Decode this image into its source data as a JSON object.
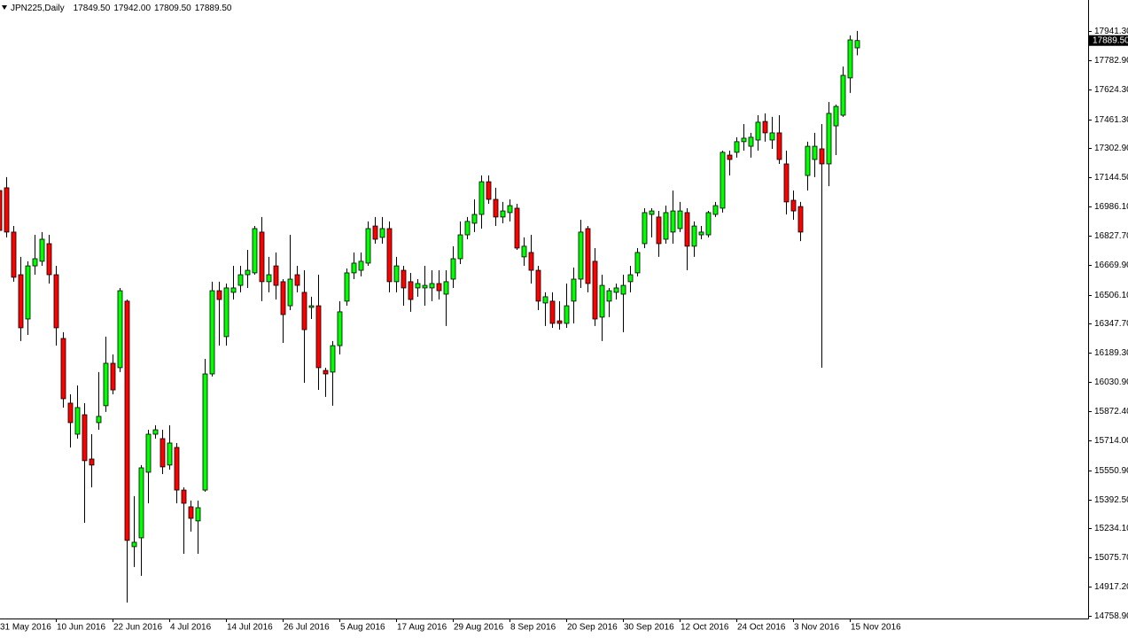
{
  "chart_data": {
    "type": "candlestick",
    "title": "JPN225,Daily",
    "header_values": [
      "17849.50",
      "17942.00",
      "17809.50",
      "17889.50"
    ],
    "categories": [
      "31 May 2016",
      null,
      null,
      null,
      null,
      null,
      null,
      null,
      "10 Jun 2016",
      null,
      null,
      null,
      null,
      null,
      null,
      null,
      "22 Jun 2016",
      null,
      null,
      null,
      null,
      null,
      null,
      null,
      "4 Jul 2016",
      null,
      null,
      null,
      null,
      null,
      null,
      null,
      "14 Jul 2016",
      null,
      null,
      null,
      null,
      null,
      null,
      null,
      "26 Jul 2016",
      null,
      null,
      null,
      null,
      null,
      null,
      null,
      "5 Aug 2016",
      null,
      null,
      null,
      null,
      null,
      null,
      null,
      "17 Aug 2016",
      null,
      null,
      null,
      null,
      null,
      null,
      null,
      "29 Aug 2016",
      null,
      null,
      null,
      null,
      null,
      null,
      null,
      "8 Sep 2016",
      null,
      null,
      null,
      null,
      null,
      null,
      null,
      "20 Sep 2016",
      null,
      null,
      null,
      null,
      null,
      null,
      null,
      "30 Sep 2016",
      null,
      null,
      null,
      null,
      null,
      null,
      null,
      "12 Oct 2016",
      null,
      null,
      null,
      null,
      null,
      null,
      null,
      "24 Oct 2016",
      null,
      null,
      null,
      null,
      null,
      null,
      null,
      "3 Nov 2016",
      null,
      null,
      null,
      null,
      null,
      null,
      null,
      "15 Nov 2016",
      null
    ],
    "open": [
      17073,
      17088,
      16847,
      16615,
      16374,
      16663,
      16688,
      16784,
      16615,
      16268,
      15916,
      15747,
      15853,
      15612,
      15810,
      15902,
      16133,
      16109,
      16471,
      15135,
      15183,
      15540,
      15747,
      15723,
      15579,
      15675,
      15443,
      15352,
      15275,
      15443,
      16075,
      16528,
      16278,
      16519,
      16557,
      16615,
      16625,
      16847,
      16577,
      16663,
      16577,
      16446,
      16615,
      16519,
      16437,
      16446,
      16094,
      16085,
      16229,
      16471,
      16625,
      16639,
      16678,
      16880,
      16818,
      16866,
      16577,
      16639,
      16577,
      16543,
      16543,
      16543,
      16567,
      16509,
      16591,
      16702,
      16832,
      16895,
      16943,
      17121,
      17025,
      16929,
      16953,
      16977,
      16712,
      16736,
      16639,
      16461,
      16471,
      16364,
      16350,
      16471,
      16591,
      16866,
      16688,
      16384,
      16471,
      16519,
      16509,
      16577,
      16625,
      16784,
      16943,
      16929,
      16808,
      16847,
      16866,
      16953,
      16770,
      16832,
      16832,
      16943,
      16977,
      17266,
      17281,
      17339,
      17314,
      17348,
      17449,
      17348,
      17387,
      17218,
      17020,
      16986,
      17155,
      17242,
      17300,
      17218,
      17425,
      17483,
      17686,
      17849.5
    ],
    "high": [
      17122,
      17146,
      16880,
      16712,
      16688,
      16832,
      16847,
      16832,
      16663,
      16302,
      15964,
      16012,
      15916,
      15747,
      16085,
      16278,
      16181,
      16543,
      16480,
      15410,
      15579,
      15771,
      15796,
      15771,
      15796,
      15699,
      15458,
      15386,
      15386,
      16157,
      16577,
      16577,
      16567,
      16663,
      16663,
      16750,
      16880,
      16929,
      16712,
      16736,
      16591,
      16832,
      16663,
      16639,
      16495,
      16615,
      16109,
      16254,
      16471,
      16649,
      16736,
      16736,
      16905,
      16929,
      16929,
      16905,
      16712,
      16663,
      16625,
      16591,
      16663,
      16639,
      16639,
      16639,
      16770,
      16905,
      16929,
      17025,
      17155,
      17155,
      17088,
      17011,
      17025,
      17001,
      16818,
      16832,
      16663,
      16519,
      16519,
      16471,
      16567,
      16654,
      16914,
      16880,
      16760,
      16615,
      16543,
      16567,
      16615,
      16663,
      16760,
      16977,
      16977,
      16962,
      16991,
      17073,
      17011,
      16977,
      16905,
      16880,
      16962,
      17011,
      17290,
      17290,
      17363,
      17435,
      17387,
      17483,
      17493,
      17474,
      17483,
      17290,
      17073,
      17011,
      17339,
      17387,
      17435,
      17555,
      17541,
      17748,
      17917,
      17942
    ],
    "low": [
      16832,
      16818,
      16577,
      16254,
      16287,
      16615,
      16663,
      16567,
      16229,
      15892,
      15675,
      15723,
      15265,
      15458,
      15771,
      15868,
      15964,
      16085,
      14831,
      15024,
      14976,
      15371,
      15723,
      15530,
      15554,
      15371,
      15096,
      15217,
      15096,
      15434,
      16061,
      16229,
      16229,
      16480,
      16519,
      16543,
      16615,
      16471,
      16519,
      16480,
      16244,
      16422,
      16519,
      16027,
      16374,
      15988,
      15950,
      15902,
      16181,
      16446,
      16591,
      16606,
      16663,
      16784,
      16784,
      16519,
      16519,
      16446,
      16413,
      16495,
      16446,
      16471,
      16480,
      16336,
      16543,
      16673,
      16808,
      16847,
      16866,
      17001,
      16880,
      16895,
      16905,
      16750,
      16663,
      16567,
      16422,
      16336,
      16326,
      16316,
      16326,
      16350,
      16543,
      16519,
      16336,
      16254,
      16384,
      16480,
      16302,
      16519,
      16606,
      16760,
      16818,
      16712,
      16784,
      16784,
      16847,
      16639,
      16712,
      16808,
      16818,
      16929,
      16953,
      17155,
      17252,
      17290,
      17252,
      17290,
      17339,
      17300,
      17218,
      16943,
      16914,
      16798,
      17073,
      17146,
      16109,
      17097,
      17266,
      17474,
      17604,
      17809.5
    ],
    "close": [
      16856,
      16847,
      16601,
      16326,
      16663,
      16702,
      16808,
      16615,
      16326,
      15940,
      15810,
      15892,
      15603,
      15579,
      15844,
      16133,
      15988,
      16528,
      15169,
      15159,
      15564,
      15747,
      15771,
      15569,
      15699,
      15443,
      15371,
      15289,
      15347,
      16075,
      16528,
      16480,
      16543,
      16543,
      16615,
      16639,
      16866,
      16577,
      16615,
      16557,
      16398,
      16591,
      16557,
      16316,
      16446,
      16109,
      16075,
      16229,
      16413,
      16625,
      16678,
      16688,
      16866,
      16808,
      16866,
      16577,
      16663,
      16543,
      16480,
      16567,
      16557,
      16567,
      16528,
      16577,
      16702,
      16832,
      16905,
      16943,
      17121,
      17025,
      16929,
      16962,
      16991,
      16760,
      16770,
      16639,
      16471,
      16495,
      16350,
      16350,
      16446,
      16591,
      16847,
      16567,
      16374,
      16557,
      16528,
      16543,
      16557,
      16615,
      16736,
      16953,
      16962,
      16784,
      16953,
      16962,
      16962,
      16770,
      16880,
      16847,
      16953,
      16991,
      17281,
      17242,
      17339,
      17358,
      17363,
      17445,
      17387,
      17387,
      17242,
      17011,
      16962,
      16847,
      17314,
      17314,
      17218,
      17493,
      17531,
      17700,
      17893,
      17889.5
    ],
    "up_color": "#00ff00",
    "down_color": "#ff0000",
    "ylim": [
      14744,
      18110
    ],
    "yticks": [
      {
        "value": 14758.9,
        "label": "14758.90"
      },
      {
        "value": 14917.2,
        "label": "14917.20"
      },
      {
        "value": 15075.7,
        "label": "15075.70"
      },
      {
        "value": 15234.1,
        "label": "15234.10"
      },
      {
        "value": 15392.5,
        "label": "15392.50"
      },
      {
        "value": 15550.9,
        "label": "15550.90"
      },
      {
        "value": 15714,
        "label": "15714.00"
      },
      {
        "value": 15872.4,
        "label": "15872.40"
      },
      {
        "value": 16030.9,
        "label": "16030.90"
      },
      {
        "value": 16189.3,
        "label": "16189.30"
      },
      {
        "value": 16347.7,
        "label": "16347.70"
      },
      {
        "value": 16506.1,
        "label": "16506.10"
      },
      {
        "value": 16669.9,
        "label": "16669.90"
      },
      {
        "value": 16827.7,
        "label": "16827.70"
      },
      {
        "value": 16986.1,
        "label": "16986.10"
      },
      {
        "value": 17144.5,
        "label": "17144.50"
      },
      {
        "value": 17302.9,
        "label": "17302.90"
      },
      {
        "value": 17461.3,
        "label": "17461.30"
      },
      {
        "value": 17624.3,
        "label": "17624.30"
      },
      {
        "value": 17782.9,
        "label": "17782.90"
      },
      {
        "value": 17941.3,
        "label": "17941.30"
      }
    ],
    "grid": false
  }
}
